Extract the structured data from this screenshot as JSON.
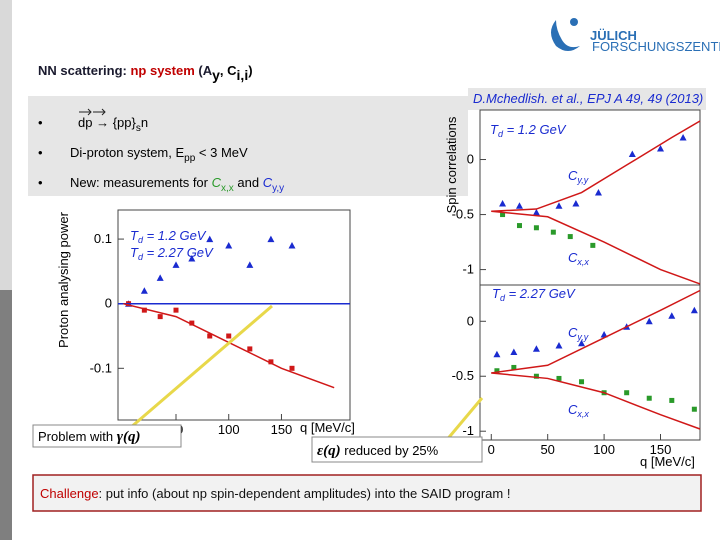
{
  "logo": {
    "name": "JÜLICH",
    "sub": "FORSCHUNGSZENTRUM"
  },
  "title": {
    "part1": "NN scattering: ",
    "part2": "np system",
    "part3": " (A",
    "sub1": "y",
    "part4": ", C",
    "sub2": "i,i",
    "part5": ")"
  },
  "reference": "D.Mchedlish. et al.,  EPJ A 49, 49 (2013)",
  "bullets": [
    {
      "a": "dp",
      "b": " → {pp}",
      "sub": "s",
      "c": "n"
    },
    {
      "a": "Di-proton system, E",
      "sub": "pp",
      "c": " < 3 MeV"
    },
    {
      "a": "New: measurements  for ",
      "c1": "C",
      "s1": "x,x",
      "and": " and ",
      "c2": "C",
      "s2": "y,y"
    }
  ],
  "plots": [
    {
      "type": "scatter",
      "ylabel": "Proton analysing power",
      "xlabel": "q [MeV/c]",
      "xlim": [
        -5,
        215
      ],
      "ylim": [
        -0.18,
        0.145
      ],
      "xticks": [
        50,
        100,
        150
      ],
      "yticks": [
        0.1,
        0,
        -0.1
      ],
      "labels": [
        {
          "text": "T",
          "sub": "d",
          "rest": " = 1.2 GeV"
        },
        {
          "text": "T",
          "sub": "d",
          "rest": " = 2.27 GeV"
        }
      ],
      "series": [
        {
          "mode": "markers",
          "marker": "triangle",
          "color": "#1a2bd0",
          "x": [
            5,
            20,
            35,
            50,
            65,
            82,
            100,
            120,
            140,
            160
          ],
          "values": [
            0.0,
            0.02,
            0.04,
            0.06,
            0.07,
            0.1,
            0.09,
            0.06,
            0.1,
            0.09
          ]
        },
        {
          "mode": "markers",
          "marker": "square",
          "color": "#d01818",
          "x": [
            5,
            20,
            35,
            50,
            65,
            82,
            100,
            120,
            140,
            160
          ],
          "values": [
            0.0,
            -0.01,
            -0.02,
            -0.01,
            -0.03,
            -0.05,
            -0.05,
            -0.07,
            -0.09,
            -0.1
          ]
        },
        {
          "mode": "line",
          "color": "#1a2bd0",
          "x": [
            -5,
            215
          ],
          "values": [
            0,
            0
          ]
        },
        {
          "mode": "line",
          "color": "#d01818",
          "x": [
            0,
            50,
            100,
            150,
            200
          ],
          "values": [
            0,
            -0.02,
            -0.06,
            -0.1,
            -0.13
          ]
        }
      ]
    },
    {
      "type": "scatter",
      "ylabel": "Spin correlations",
      "xlim": [
        -10,
        185
      ],
      "ylim": [
        -1.14,
        0.45
      ],
      "yticks": [
        0,
        -0.5,
        -1
      ],
      "labels": [
        {
          "text": "T",
          "sub": "d",
          "rest": " = 1.2 GeV"
        },
        {
          "text": "C",
          "sub": "y,y"
        },
        {
          "text": "C",
          "sub": "x,x"
        }
      ],
      "series": [
        {
          "mode": "markers",
          "marker": "triangle",
          "color": "#1a2bd0",
          "x": [
            10,
            25,
            40,
            60,
            75,
            95,
            125,
            150,
            170
          ],
          "values": [
            -0.4,
            -0.42,
            -0.48,
            -0.42,
            -0.4,
            -0.3,
            0.05,
            0.1,
            0.2
          ]
        },
        {
          "mode": "markers",
          "marker": "square",
          "color": "#2a9a2a",
          "x": [
            10,
            25,
            40,
            55,
            70,
            90
          ],
          "values": [
            -0.5,
            -0.6,
            -0.62,
            -0.66,
            -0.7,
            -0.78
          ]
        },
        {
          "mode": "line",
          "color": "#d01818",
          "x": [
            0,
            40,
            80,
            120,
            160,
            185
          ],
          "values": [
            -0.47,
            -0.45,
            -0.3,
            -0.05,
            0.2,
            0.35
          ]
        },
        {
          "mode": "line",
          "color": "#d01818",
          "x": [
            0,
            50,
            100,
            150,
            185
          ],
          "values": [
            -0.47,
            -0.52,
            -0.75,
            -1.0,
            -1.13
          ]
        }
      ]
    },
    {
      "type": "scatter",
      "xlabel": "q [MeV/c]",
      "xlim": [
        -10,
        185
      ],
      "ylim": [
        -1.08,
        0.33
      ],
      "xticks": [
        0,
        50,
        100,
        150
      ],
      "yticks": [
        0,
        -0.5,
        -1
      ],
      "labels": [
        {
          "text": "T",
          "sub": "d",
          "rest": " = 2.27 GeV"
        },
        {
          "text": "C",
          "sub": "y,y"
        },
        {
          "text": "C",
          "sub": "x,x"
        }
      ],
      "series": [
        {
          "mode": "markers",
          "marker": "triangle",
          "color": "#1a2bd0",
          "x": [
            5,
            20,
            40,
            60,
            80,
            100,
            120,
            140,
            160,
            180
          ],
          "values": [
            -0.3,
            -0.28,
            -0.25,
            -0.22,
            -0.2,
            -0.12,
            -0.05,
            0,
            0.05,
            0.1
          ]
        },
        {
          "mode": "markers",
          "marker": "square",
          "color": "#2a9a2a",
          "x": [
            5,
            20,
            40,
            60,
            80,
            100,
            120,
            140,
            160,
            180
          ],
          "values": [
            -0.45,
            -0.42,
            -0.5,
            -0.52,
            -0.55,
            -0.65,
            -0.65,
            -0.7,
            -0.72,
            -0.8
          ]
        },
        {
          "mode": "line",
          "color": "#d01818",
          "x": [
            0,
            50,
            100,
            150,
            185
          ],
          "values": [
            -0.47,
            -0.4,
            -0.15,
            0.1,
            0.28
          ]
        },
        {
          "mode": "line",
          "color": "#d01818",
          "x": [
            0,
            50,
            100,
            150,
            185
          ],
          "values": [
            -0.47,
            -0.52,
            -0.65,
            -0.85,
            -0.98
          ]
        }
      ]
    }
  ],
  "problem": {
    "text": "Problem with ",
    "symbol": "γ(q)"
  },
  "epsilon": {
    "symbol": "ε(q)",
    "text": " reduced by 25%"
  },
  "challenge": {
    "word": "Challenge",
    "text": ": put info (about np spin-dependent amplitudes) into the SAID program !"
  }
}
